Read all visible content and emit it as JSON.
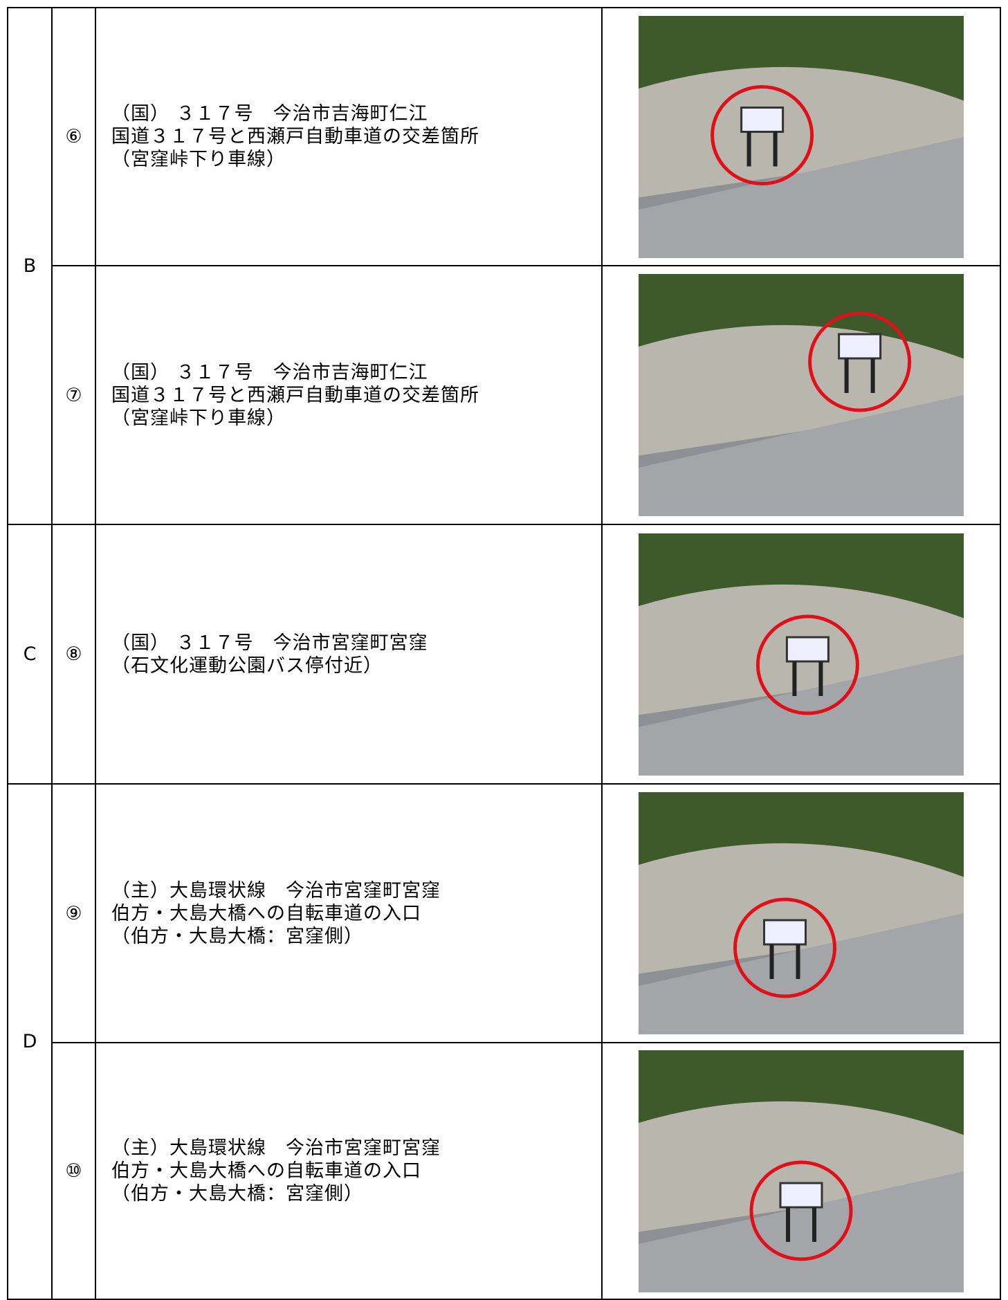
{
  "table": {
    "groups": [
      {
        "label": "B",
        "entries": [
          {
            "number": "⑥",
            "lines": [
              "（国） ３１７号　今治市吉海町仁江",
              "国道３１７号と西瀬戸自動車道の交差箇所",
              "（宮窪峠下り車線）"
            ]
          },
          {
            "number": "⑦",
            "lines": [
              "（国） ３１７号　今治市吉海町仁江",
              "国道３１７号と西瀬戸自動車道の交差箇所",
              "（宮窪峠下り車線）"
            ]
          }
        ]
      },
      {
        "label": "C",
        "entries": [
          {
            "number": "⑧",
            "lines": [
              "（国） ３１７号　今治市宮窪町宮窪",
              "（石文化運動公園バス停付近）"
            ]
          }
        ]
      },
      {
        "label": "D",
        "entries": [
          {
            "number": "⑨",
            "lines": [
              "（主）大島環状線　今治市宮窪町宮窪",
              "伯方・大島大橋への自転車道の入口",
              "（伯方・大島大橋：宮窪側）"
            ]
          },
          {
            "number": "⑩",
            "lines": [
              "（主）大島環状線　今治市宮窪町宮窪",
              "伯方・大島大橋への自転車道の入口",
              "（伯方・大島大橋：宮窪側）"
            ]
          }
        ]
      }
    ]
  }
}
